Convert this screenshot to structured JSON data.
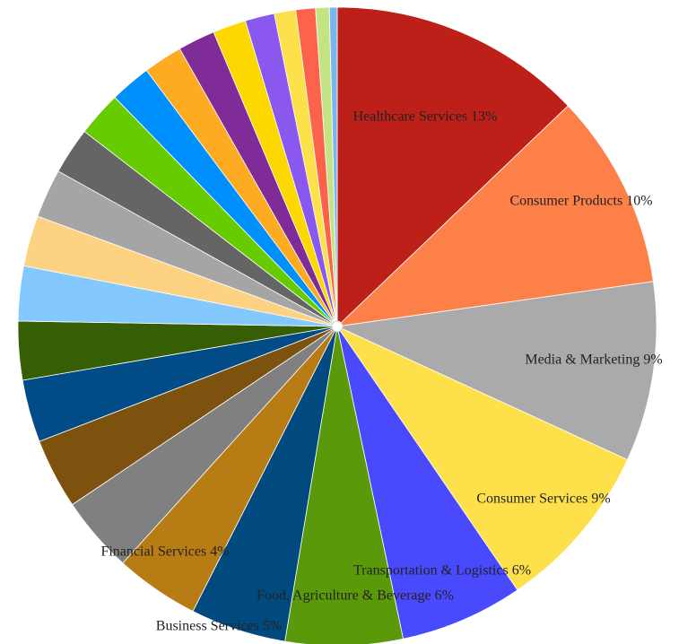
{
  "chart_data": {
    "type": "pie",
    "title": "",
    "start_angle_deg": 0,
    "direction": "clockwise",
    "slices": [
      {
        "value": 13.0,
        "label": "Healthcare Services 13%",
        "color": "#bd2018"
      },
      {
        "value": 10.0,
        "label": "Consumer Products 10%",
        "color": "#fd8049"
      },
      {
        "value": 9.2,
        "label": "Media & Marketing 9%",
        "color": "#aaaaaa"
      },
      {
        "value": 8.7,
        "label": "Consumer Services 9%",
        "color": "#fee14a"
      },
      {
        "value": 6.3,
        "label": "Transportation & Logistics 6%",
        "color": "#4949fd"
      },
      {
        "value": 6.0,
        "label": "Food, Agriculture & Beverage 6%",
        "color": "#5a9a0a"
      },
      {
        "value": 4.9,
        "label": "Business Services 5%",
        "color": "#004a80"
      },
      {
        "value": 4.3,
        "label": "",
        "color": "#b87c15"
      },
      {
        "value": 3.9,
        "label": "Financial Services 4%",
        "color": "#808080"
      },
      {
        "value": 3.6,
        "label": "",
        "color": "#7d520e"
      },
      {
        "value": 3.2,
        "label": "",
        "color": "#014b86"
      },
      {
        "value": 3.0,
        "label": "",
        "color": "#365f05"
      },
      {
        "value": 2.8,
        "label": "",
        "color": "#83c8fe"
      },
      {
        "value": 2.6,
        "label": "",
        "color": "#fdd283"
      },
      {
        "value": 2.5,
        "label": "",
        "color": "#a5a5a5"
      },
      {
        "value": 2.4,
        "label": "",
        "color": "#656565"
      },
      {
        "value": 2.3,
        "label": "",
        "color": "#66cc00"
      },
      {
        "value": 2.1,
        "label": "",
        "color": "#0090fd"
      },
      {
        "value": 2.0,
        "label": "",
        "color": "#fdab21"
      },
      {
        "value": 1.9,
        "label": "",
        "color": "#7f2b98"
      },
      {
        "value": 1.7,
        "label": "",
        "color": "#fcd800"
      },
      {
        "value": 1.5,
        "label": "",
        "color": "#8a58ee"
      },
      {
        "value": 1.1,
        "label": "",
        "color": "#fde14a"
      },
      {
        "value": 1.0,
        "label": "",
        "color": "#fd624a"
      },
      {
        "value": 0.7,
        "label": "",
        "color": "#c4e383"
      },
      {
        "value": 0.4,
        "label": "",
        "color": "#7ab6ee"
      }
    ]
  }
}
